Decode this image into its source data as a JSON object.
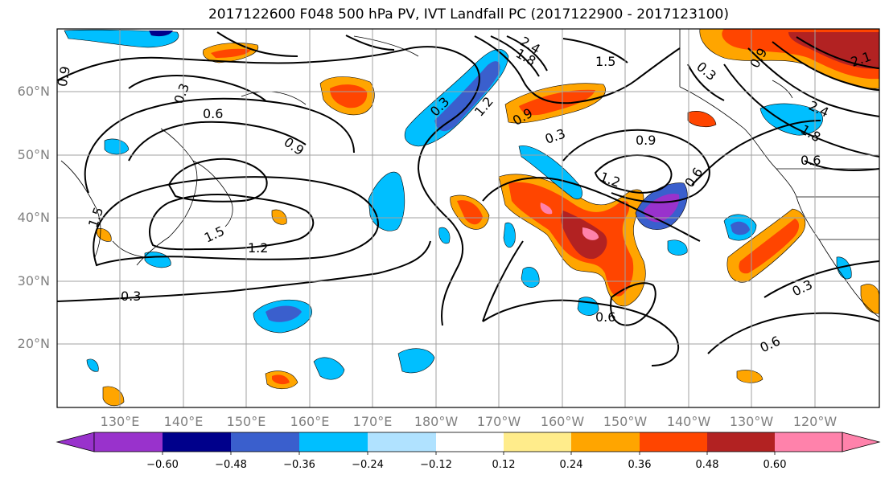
{
  "title": "2017122600 F048 500 hPa PV, IVT Landfall PC (2017122900 - 2017123100)",
  "lat_labels": [
    "60°N",
    "50°N",
    "40°N",
    "30°N",
    "20°N"
  ],
  "lon_labels": [
    "130°E",
    "140°E",
    "150°E",
    "160°E",
    "170°E",
    "180°W",
    "170°W",
    "160°W",
    "150°W",
    "140°W",
    "130°W",
    "120°W"
  ],
  "contour_labels": [
    "0.9",
    "0.3",
    "0.6",
    "0.9",
    "1.5",
    "1.2",
    "0.3",
    "0.3",
    "1.2",
    "2.4",
    "1.8",
    "1.5",
    "0.9",
    "0.3",
    "0.9",
    "1.2",
    "0.6",
    "0.6",
    "0.3",
    "0.6",
    "0.3",
    "0.9",
    "2.1",
    "2.4",
    "1.8",
    "0.6",
    "1.5"
  ],
  "colorbar": {
    "ticks": [
      "−0.60",
      "−0.48",
      "−0.36",
      "−0.24",
      "−0.12",
      "0.12",
      "0.24",
      "0.36",
      "0.48",
      "0.60"
    ],
    "colors": [
      "#9932cc",
      "#00008b",
      "#3a5fcd",
      "#00bfff",
      "#b0e2ff",
      "#ffffff",
      "#ffec8b",
      "#ffa500",
      "#ff4500",
      "#b22222",
      "#ff82ab"
    ]
  }
}
